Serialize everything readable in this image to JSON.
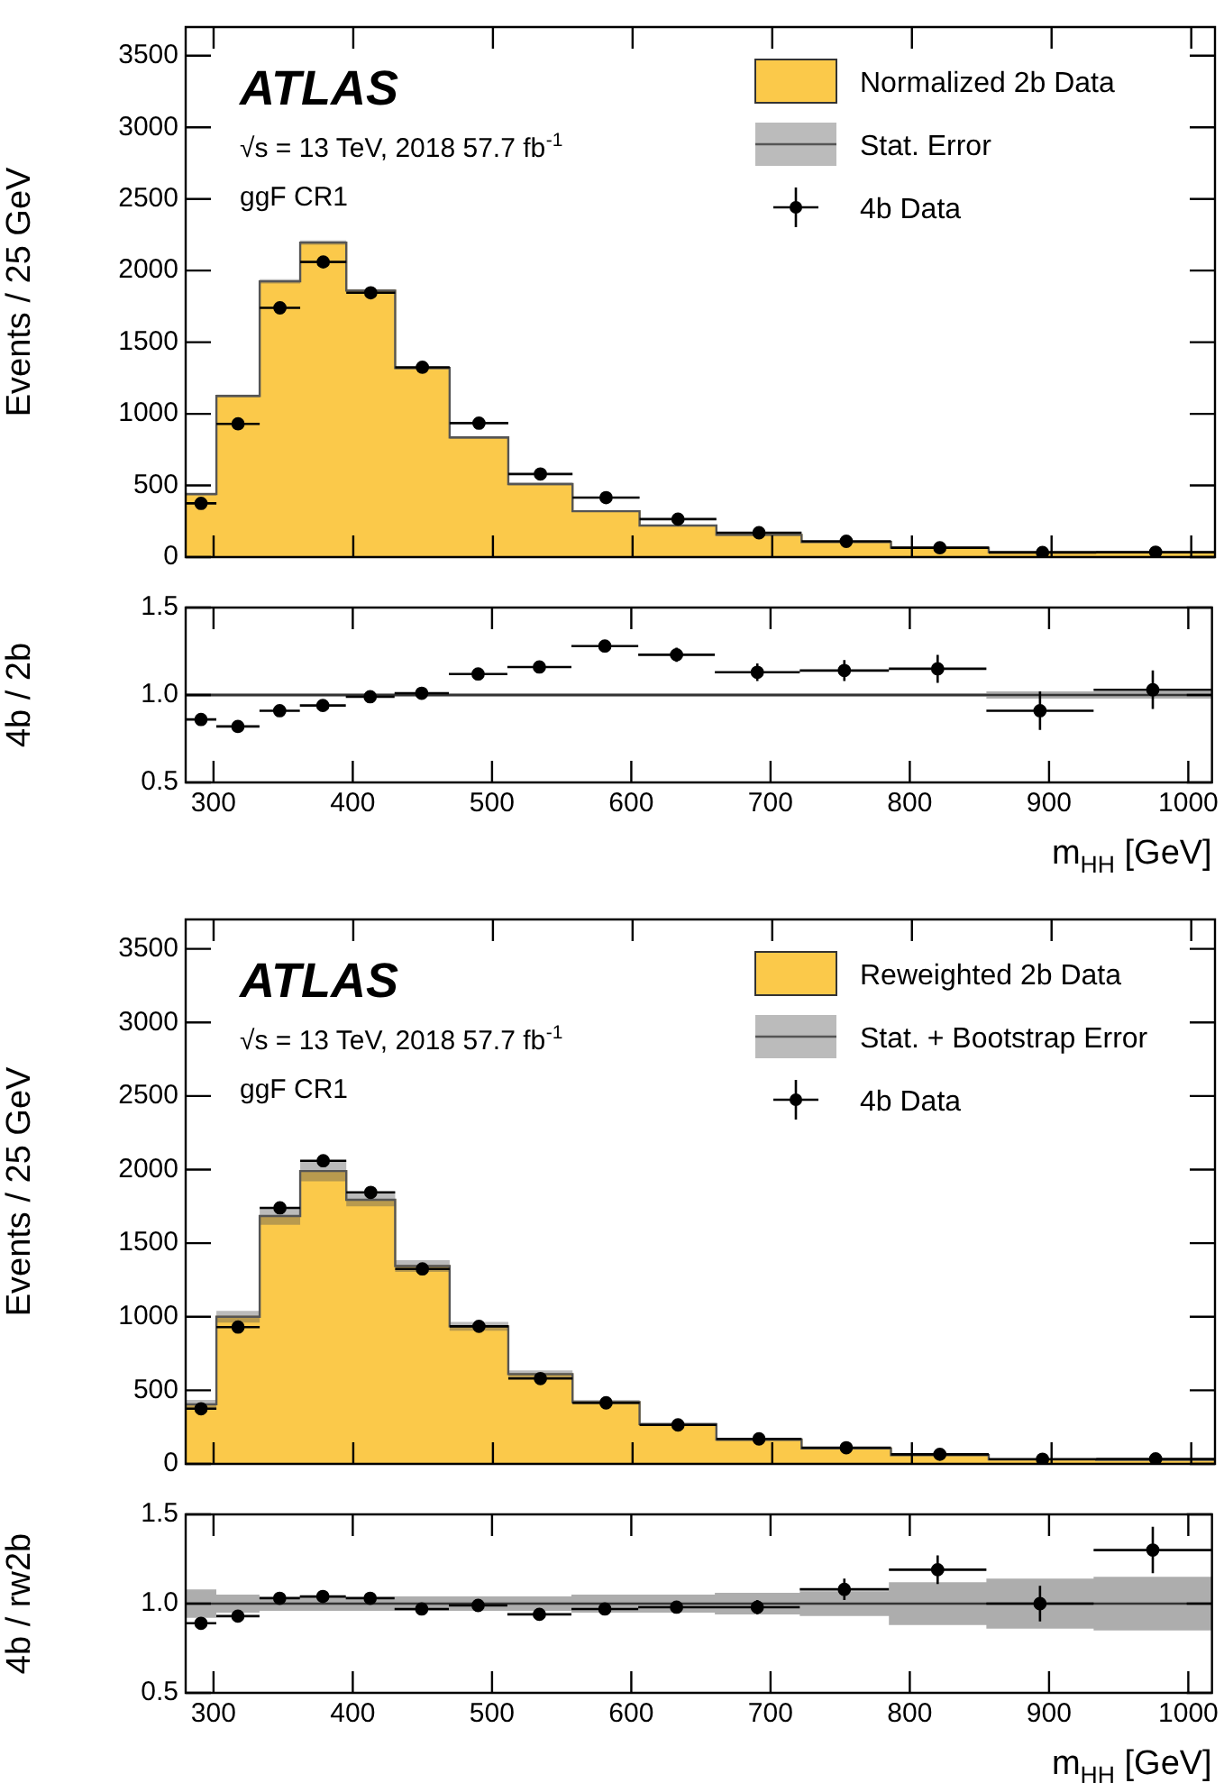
{
  "chart_data": [
    {
      "type": "histogram",
      "ylabel": "Events / 25 GeV",
      "annotations": [
        "ATLAS",
        "√s = 13 TeV, 2018 57.7 fb$^{-1}$",
        "ggF CR1"
      ],
      "bins": [
        280,
        302,
        333,
        362,
        395,
        430,
        469,
        511,
        557,
        605,
        660,
        721,
        785,
        855,
        932,
        1017
      ],
      "xlim": [
        280,
        1017
      ],
      "xticks": [
        300,
        400,
        500,
        600,
        700,
        800,
        900,
        1000
      ],
      "ylim": [
        0,
        3700
      ],
      "yticks": [
        0,
        500,
        1000,
        1500,
        2000,
        2500,
        3000,
        3500
      ],
      "tick_labels": "y",
      "legend": "top right",
      "series": [
        {
          "name": "Normalized 2b Data",
          "type": "histogram",
          "color": "#fbc94a",
          "values": [
            440,
            1125,
            1925,
            2195,
            1860,
            1320,
            835,
            510,
            320,
            220,
            155,
            105,
            65,
            35,
            33
          ]
        },
        {
          "name": "Stat. Error",
          "type": "step",
          "color": "#555555",
          "x": [
            280,
            302,
            333,
            362,
            395,
            430,
            469,
            511,
            557,
            605,
            660,
            721,
            785,
            855,
            932,
            1017
          ],
          "values": [
            440,
            1125,
            1925,
            2195,
            1860,
            1320,
            835,
            510,
            320,
            220,
            155,
            105,
            65,
            35,
            33,
            33
          ],
          "lower": [
            430,
            1115,
            1910,
            2180,
            1850,
            1310,
            825,
            500,
            315,
            215,
            150,
            100,
            62,
            32,
            30,
            30
          ],
          "upper": [
            450,
            1135,
            1940,
            2210,
            1870,
            1330,
            845,
            520,
            325,
            225,
            160,
            110,
            68,
            38,
            36,
            36
          ]
        },
        {
          "name": "4b Data",
          "type": "scatter",
          "color": "#000000",
          "marker": "circle",
          "x": [
            291,
            317.5,
            347.5,
            378.5,
            412.5,
            449.5,
            490,
            534,
            581,
            632.5,
            690.5,
            753,
            820,
            893.5,
            974.5
          ],
          "values": [
            375,
            930,
            1740,
            2060,
            1845,
            1325,
            935,
            580,
            415,
            265,
            170,
            110,
            65,
            32,
            34
          ],
          "xerrors": [
            11,
            15.5,
            14.5,
            16.5,
            17.5,
            19.5,
            21,
            23,
            24,
            27.5,
            30.5,
            32,
            35,
            38.5,
            42.5
          ]
        }
      ]
    },
    {
      "type": "scatter",
      "ylabel": "4b / 2b",
      "xlabel": "m$_{HH}$ [GeV]",
      "xlim": [
        280,
        1017
      ],
      "xticks": [
        300,
        400,
        500,
        600,
        700,
        800,
        900,
        1000
      ],
      "ylim": [
        0.5,
        1.5
      ],
      "yticks": [
        0.5,
        {
          "value": 1,
          "label": "1.0"
        },
        1.5
      ],
      "series": [
        {
          "type": "step",
          "color": "#333333",
          "x": [
            280,
            302,
            333,
            362,
            395,
            430,
            469,
            511,
            557,
            605,
            660,
            721,
            785,
            855,
            932,
            1017
          ],
          "values": [
            1,
            1,
            1,
            1,
            1,
            1,
            1,
            1,
            1,
            1,
            1,
            1,
            1,
            1,
            1,
            1
          ],
          "lower": [
            0.99,
            0.99,
            0.99,
            0.99,
            0.99,
            0.99,
            0.99,
            0.99,
            0.99,
            0.99,
            0.99,
            0.99,
            0.99,
            0.98,
            0.98,
            0.98
          ],
          "upper": [
            1.01,
            1.01,
            1.01,
            1.01,
            1.01,
            1.01,
            1.01,
            1.01,
            1.01,
            1.01,
            1.01,
            1.01,
            1.01,
            1.02,
            1.02,
            1.02
          ]
        },
        {
          "type": "scatter",
          "color": "#000000",
          "marker": "circle",
          "x": [
            291,
            317.5,
            347.5,
            378.5,
            412.5,
            449.5,
            490,
            534,
            581,
            632.5,
            690.5,
            753,
            820,
            893.5,
            974.5
          ],
          "values": [
            0.86,
            0.82,
            0.91,
            0.94,
            0.99,
            1.01,
            1.12,
            1.16,
            1.28,
            1.23,
            1.13,
            1.14,
            1.15,
            0.91,
            1.03
          ],
          "errors": [
            0.02,
            0.01,
            0.01,
            0.01,
            0.01,
            0.01,
            0.02,
            0.02,
            0.03,
            0.04,
            0.05,
            0.06,
            0.08,
            0.11,
            0.11
          ],
          "xerrors": [
            11,
            15.5,
            14.5,
            16.5,
            17.5,
            19.5,
            21,
            23,
            24,
            27.5,
            30.5,
            32,
            35,
            38.5,
            42.5
          ]
        }
      ]
    },
    {
      "type": "histogram",
      "ylabel": "Events / 25 GeV",
      "annotations": [
        "ATLAS",
        "√s = 13 TeV, 2018 57.7 fb$^{-1}$",
        "ggF CR1"
      ],
      "bins": [
        280,
        302,
        333,
        362,
        395,
        430,
        469,
        511,
        557,
        605,
        660,
        721,
        785,
        855,
        932,
        1017
      ],
      "xlim": [
        280,
        1017
      ],
      "xticks": [
        300,
        400,
        500,
        600,
        700,
        800,
        900,
        1000
      ],
      "ylim": [
        0,
        3700
      ],
      "yticks": [
        0,
        500,
        1000,
        1500,
        2000,
        2500,
        3000,
        3500
      ],
      "tick_labels": "y",
      "legend": "top right",
      "series": [
        {
          "name": "Reweighted 2b Data",
          "type": "histogram",
          "color": "#fbc94a",
          "values": [
            405,
            1000,
            1685,
            1990,
            1795,
            1345,
            935,
            610,
            420,
            270,
            165,
            105,
            60,
            30,
            27
          ]
        },
        {
          "name": "Stat. + Bootstrap Error",
          "type": "step",
          "color": "#555555",
          "x": [
            280,
            302,
            333,
            362,
            395,
            430,
            469,
            511,
            557,
            605,
            660,
            721,
            785,
            855,
            932,
            1017
          ],
          "values": [
            405,
            1000,
            1685,
            1990,
            1795,
            1345,
            935,
            610,
            420,
            270,
            165,
            105,
            60,
            30,
            27,
            27
          ],
          "lower": [
            375,
            960,
            1625,
            1920,
            1750,
            1305,
            905,
            585,
            405,
            260,
            155,
            100,
            55,
            27,
            24,
            24
          ],
          "upper": [
            435,
            1040,
            1745,
            2060,
            1840,
            1385,
            965,
            635,
            435,
            280,
            175,
            110,
            65,
            33,
            30,
            30
          ]
        },
        {
          "name": "4b Data",
          "type": "scatter",
          "color": "#000000",
          "marker": "circle",
          "x": [
            291,
            317.5,
            347.5,
            378.5,
            412.5,
            449.5,
            490,
            534,
            581,
            632.5,
            690.5,
            753,
            820,
            893.5,
            974.5
          ],
          "values": [
            375,
            930,
            1740,
            2060,
            1845,
            1325,
            935,
            580,
            415,
            265,
            170,
            110,
            65,
            32,
            34
          ],
          "xerrors": [
            11,
            15.5,
            14.5,
            16.5,
            17.5,
            19.5,
            21,
            23,
            24,
            27.5,
            30.5,
            32,
            35,
            38.5,
            42.5
          ]
        }
      ]
    },
    {
      "type": "scatter",
      "ylabel": "4b / rw2b",
      "xlabel": "m$_{HH}$ [GeV]",
      "xlim": [
        280,
        1017
      ],
      "xticks": [
        300,
        400,
        500,
        600,
        700,
        800,
        900,
        1000
      ],
      "ylim": [
        0.5,
        1.5
      ],
      "yticks": [
        0.5,
        {
          "value": 1,
          "label": "1.0"
        },
        1.5
      ],
      "series": [
        {
          "type": "step",
          "color": "#333333",
          "x": [
            280,
            302,
            333,
            362,
            395,
            430,
            469,
            511,
            557,
            605,
            660,
            721,
            785,
            855,
            932,
            1017
          ],
          "values": [
            1,
            1,
            1,
            1,
            1,
            1,
            1,
            1,
            1,
            1,
            1,
            1,
            1,
            1,
            1,
            1
          ],
          "lower": [
            0.92,
            0.95,
            0.96,
            0.96,
            0.96,
            0.96,
            0.96,
            0.96,
            0.95,
            0.95,
            0.94,
            0.93,
            0.88,
            0.86,
            0.85,
            0.85
          ],
          "upper": [
            1.08,
            1.05,
            1.04,
            1.04,
            1.04,
            1.04,
            1.04,
            1.04,
            1.05,
            1.05,
            1.06,
            1.07,
            1.12,
            1.14,
            1.15,
            1.15
          ]
        },
        {
          "type": "scatter",
          "color": "#000000",
          "marker": "circle",
          "x": [
            291,
            317.5,
            347.5,
            378.5,
            412.5,
            449.5,
            490,
            534,
            581,
            632.5,
            690.5,
            753,
            820,
            893.5,
            974.5
          ],
          "values": [
            0.89,
            0.93,
            1.03,
            1.04,
            1.03,
            0.97,
            0.99,
            0.94,
            0.97,
            0.98,
            0.98,
            1.08,
            1.19,
            1.0,
            1.3
          ],
          "errors": [
            0.03,
            0.02,
            0.01,
            0.01,
            0.01,
            0.01,
            0.02,
            0.02,
            0.02,
            0.03,
            0.04,
            0.06,
            0.08,
            0.1,
            0.13
          ],
          "xerrors": [
            11,
            15.5,
            14.5,
            16.5,
            17.5,
            19.5,
            21,
            23,
            24,
            27.5,
            30.5,
            32,
            35,
            38.5,
            42.5
          ]
        }
      ]
    }
  ]
}
